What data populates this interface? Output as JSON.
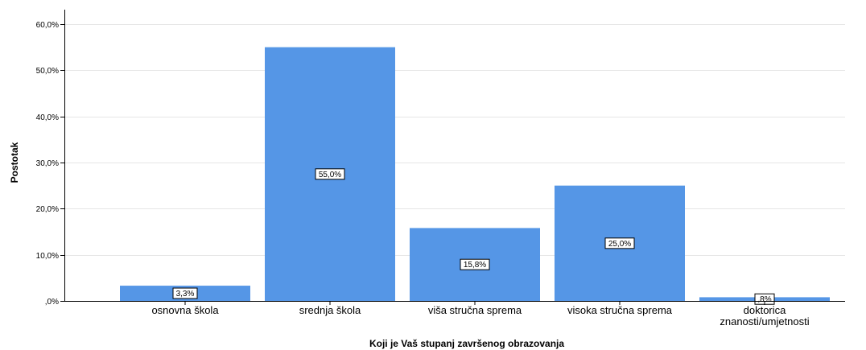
{
  "chart_data": {
    "type": "bar",
    "categories": [
      [
        "osnovna škola"
      ],
      [
        "srednja škola"
      ],
      [
        "viša stručna sprema"
      ],
      [
        "visoka stručna sprema"
      ],
      [
        "doktorica",
        "znanosti/umjetnosti"
      ]
    ],
    "values": [
      3.3,
      55.0,
      15.8,
      25.0,
      0.8
    ],
    "data_labels": [
      "3,3%",
      "55,0%",
      "15,8%",
      "25,0%",
      ",8%"
    ],
    "yticks": [
      {
        "value": 0,
        "label": ",0%"
      },
      {
        "value": 10,
        "label": "10,0%"
      },
      {
        "value": 20,
        "label": "20,0%"
      },
      {
        "value": 30,
        "label": "30,0%"
      },
      {
        "value": 40,
        "label": "40,0%"
      },
      {
        "value": 50,
        "label": "50,0%"
      },
      {
        "value": 60,
        "label": "60,0%"
      }
    ],
    "ylim": [
      0,
      60
    ],
    "xlabel": "Koji je Vaš stupanj završenog obrazovanja",
    "ylabel": "Postotak",
    "grid": true,
    "bar_color": "#5596e6",
    "grid_color": "#e6e6e6"
  }
}
